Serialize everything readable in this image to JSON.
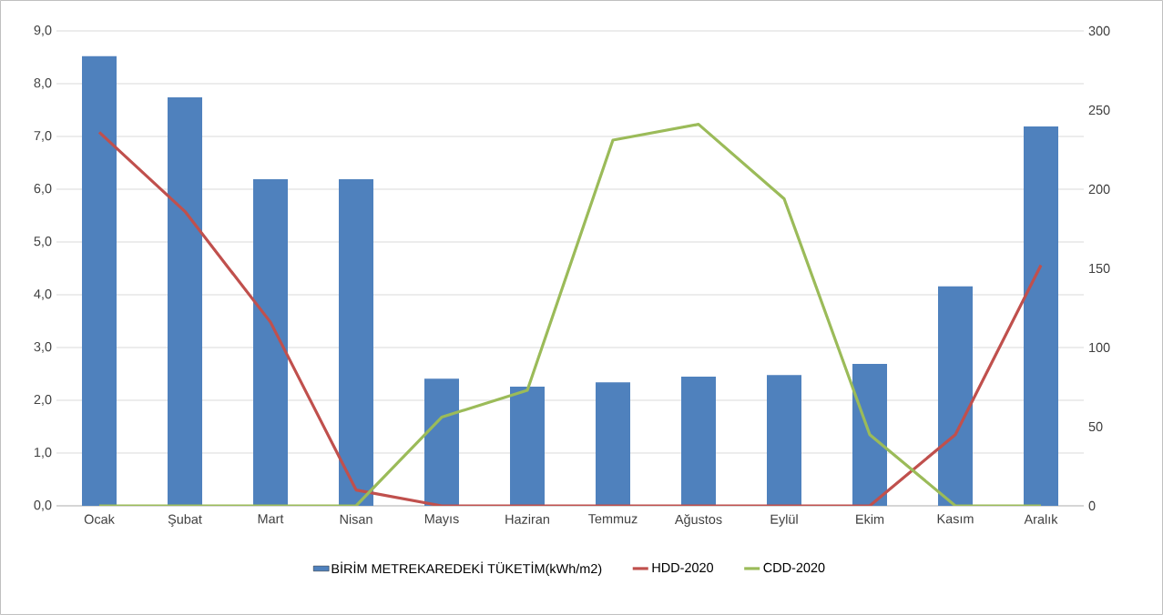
{
  "chart_data": {
    "type": "bar",
    "categories": [
      "Ocak",
      "Şubat",
      "Mart",
      "Nisan",
      "Mayıs",
      "Haziran",
      "Temmuz",
      "Ağustos",
      "Eylül",
      "Ekim",
      "Kasım",
      "Aralık"
    ],
    "series": [
      {
        "name": "BİRİM METREKAREDEKİ TÜKETİM(kWh/m2)",
        "color": "#4f81bd",
        "values": [
          8.52,
          7.74,
          6.19,
          6.19,
          2.41,
          2.26,
          2.34,
          2.45,
          2.48,
          2.69,
          4.16,
          7.19
        ]
      },
      {
        "name": "HDD-2020",
        "type": "line",
        "axis": "y2",
        "color": "#c0504d",
        "values": [
          236,
          186,
          116,
          10,
          0,
          0,
          0,
          0,
          0,
          0,
          45,
          152
        ]
      },
      {
        "name": "CDD-2020",
        "type": "line",
        "axis": "y2",
        "color": "#9bbb59",
        "values": [
          0,
          0,
          0,
          0,
          56,
          73,
          231,
          241,
          194,
          45,
          0,
          0
        ]
      }
    ],
    "ylim": [
      0,
      9
    ],
    "yticks": [
      {
        "value": 0,
        "label": "0,0"
      },
      {
        "value": 1,
        "label": "1,0"
      },
      {
        "value": 2,
        "label": "2,0"
      },
      {
        "value": 3,
        "label": "3,0"
      },
      {
        "value": 4,
        "label": "4,0"
      },
      {
        "value": 5,
        "label": "5,0"
      },
      {
        "value": 6,
        "label": "6,0"
      },
      {
        "value": 7,
        "label": "7,0"
      },
      {
        "value": 8,
        "label": "8,0"
      },
      {
        "value": 9,
        "label": "9,0"
      }
    ],
    "y2lim": [
      0,
      300
    ],
    "y2ticks": [
      0,
      50,
      100,
      150,
      200,
      250,
      300
    ],
    "grid": "y",
    "legend": "bottom"
  }
}
